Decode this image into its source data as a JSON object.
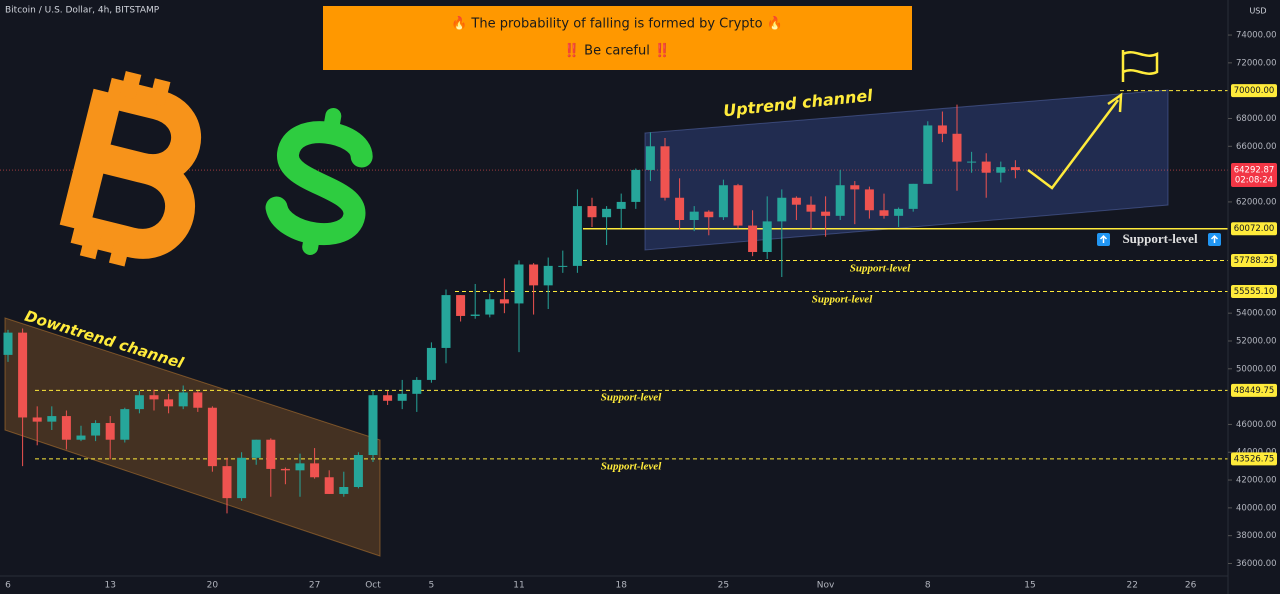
{
  "chart_data": {
    "type": "candlestick",
    "title": "Bitcoin / U.S. Dollar, 4h, BITSTAMP",
    "currency": "USD",
    "banner": [
      "🔥 The probability of falling is formed by Crypto 🔥",
      "‼️ Be careful ‼️"
    ],
    "annotations": {
      "downtrend": "Downtrend channel",
      "uptrend": "Uptrend channel",
      "support_labels": [
        "Support-level",
        "Support-level",
        "Support-level",
        "Support-level"
      ],
      "support_box": "Support-level"
    },
    "categories": [
      "6",
      null,
      null,
      null,
      null,
      null,
      null,
      "13",
      null,
      null,
      null,
      null,
      null,
      null,
      "20",
      null,
      null,
      null,
      null,
      null,
      null,
      "27",
      null,
      null,
      null,
      "Oct",
      null,
      null,
      null,
      "5",
      null,
      null,
      null,
      null,
      null,
      "11",
      null,
      null,
      null,
      null,
      null,
      null,
      "18",
      null,
      null,
      null,
      null,
      null,
      null,
      "25",
      null,
      null,
      null,
      null,
      null,
      null,
      "Nov",
      null,
      null,
      null,
      null,
      null,
      null,
      "8",
      null,
      null,
      null,
      null,
      null,
      null,
      "15",
      null,
      null,
      null,
      null,
      null,
      null,
      "22",
      null,
      null,
      null,
      "26",
      null,
      null
    ],
    "open": [
      51000,
      52600,
      46500,
      46200,
      46600,
      44900,
      45200,
      46100,
      44900,
      47100,
      48100,
      47800,
      47300,
      48300,
      47200,
      43000,
      40700,
      43600,
      44900,
      42800,
      42700,
      43200,
      42200,
      41000,
      41500,
      43800,
      48100,
      47700,
      48200,
      49200,
      51500,
      55300,
      53800,
      53900,
      55000,
      54700,
      57500,
      56000,
      57400,
      57400,
      61700,
      60900,
      61500,
      62000,
      64300,
      66000,
      62300,
      60700,
      61300,
      60900,
      63200,
      60300,
      58400,
      60600,
      62300,
      61800,
      61300,
      61000,
      63200,
      62900,
      61400,
      61000,
      61500,
      63300,
      67500,
      66900,
      64900,
      64900,
      64100,
      64500,
      null,
      null,
      null,
      null,
      null,
      null,
      null,
      null,
      null,
      null,
      null,
      null,
      null,
      null
    ],
    "high": [
      52800,
      52900,
      47300,
      47300,
      47000,
      45900,
      46300,
      46600,
      47200,
      48400,
      48500,
      48200,
      48800,
      48400,
      47300,
      43600,
      44000,
      44900,
      45000,
      42900,
      43900,
      44300,
      42700,
      42600,
      44000,
      48400,
      48400,
      49200,
      49400,
      51900,
      55700,
      55300,
      56100,
      55400,
      56500,
      57800,
      57600,
      58000,
      58500,
      62900,
      62300,
      61700,
      62600,
      64400,
      67000,
      66600,
      63700,
      61700,
      61400,
      63600,
      63300,
      61400,
      62400,
      62900,
      62400,
      62400,
      62400,
      64300,
      63500,
      63100,
      62600,
      61600,
      63300,
      67800,
      68500,
      69000,
      65600,
      65500,
      64900,
      65000,
      null,
      null,
      null,
      null,
      null,
      null,
      null,
      null,
      null,
      null,
      null,
      null,
      null,
      null
    ],
    "low": [
      50500,
      43000,
      44500,
      45600,
      44200,
      44800,
      44800,
      43500,
      44700,
      46800,
      47000,
      46800,
      47100,
      46900,
      42600,
      39600,
      40500,
      43100,
      40800,
      41700,
      40800,
      42100,
      41000,
      40800,
      41400,
      43300,
      47400,
      47100,
      46900,
      49000,
      50400,
      53400,
      53600,
      53700,
      54000,
      51200,
      53900,
      54300,
      56900,
      56900,
      60200,
      58900,
      60100,
      61500,
      63500,
      62100,
      60000,
      59900,
      59600,
      60700,
      60100,
      58100,
      57900,
      56600,
      60700,
      60000,
      59500,
      60700,
      60400,
      60800,
      60800,
      60200,
      61300,
      63300,
      66300,
      62800,
      64100,
      62300,
      63400,
      63700,
      null,
      null,
      null,
      null,
      null,
      null,
      null,
      null,
      null,
      null,
      null,
      null,
      null,
      null
    ],
    "close": [
      52600,
      46500,
      46200,
      46600,
      44900,
      45200,
      46100,
      44900,
      47100,
      48100,
      47800,
      47300,
      48300,
      47200,
      43000,
      40700,
      43600,
      44900,
      42800,
      42700,
      43200,
      42200,
      41000,
      41500,
      43800,
      48100,
      47700,
      48200,
      49200,
      51500,
      55300,
      53800,
      53900,
      55000,
      54700,
      57500,
      56000,
      57400,
      57400,
      61700,
      60900,
      61500,
      62000,
      64300,
      66000,
      62300,
      60700,
      61300,
      60900,
      63200,
      60300,
      58400,
      60600,
      62300,
      61800,
      61300,
      61000,
      63200,
      62900,
      61400,
      61000,
      61500,
      63300,
      67500,
      66900,
      64900,
      64900,
      64100,
      64500,
      64292.87,
      null,
      null,
      null,
      null,
      null,
      null,
      null,
      null,
      null,
      null,
      null,
      null,
      null,
      null
    ],
    "up_color": "#26a69a",
    "down_color": "#ef5350",
    "ylim": [
      35100,
      76520
    ],
    "yticks": [
      {
        "value": 74000,
        "label": "74000.00"
      },
      {
        "value": 72000,
        "label": "72000.00"
      },
      {
        "value": 68000,
        "label": "68000.00"
      },
      {
        "value": 66000,
        "label": "66000.00"
      },
      {
        "value": 62000,
        "label": "62000.00"
      },
      {
        "value": 54000,
        "label": "54000.00"
      },
      {
        "value": 52000,
        "label": "52000.00"
      },
      {
        "value": 50000,
        "label": "50000.00"
      },
      {
        "value": 46000,
        "label": "46000.00"
      },
      {
        "value": 44000,
        "label": "44000.00"
      },
      {
        "value": 42000,
        "label": "42000.00"
      },
      {
        "value": 40000,
        "label": "40000.00"
      },
      {
        "value": 38000,
        "label": "38000.00"
      },
      {
        "value": 36000,
        "label": "36000.00"
      }
    ],
    "levels": [
      {
        "value": 70000,
        "label": "70000.00",
        "style": "dashed"
      },
      {
        "value": 60072,
        "label": "60072.00",
        "style": "solid"
      },
      {
        "value": 57788.25,
        "label": "57788.25",
        "style": "dashed"
      },
      {
        "value": 55555.1,
        "label": "55555.10",
        "style": "dashed"
      },
      {
        "value": 48449.75,
        "label": "48449.75",
        "style": "dashed"
      },
      {
        "value": 43526.75,
        "label": "43526.75",
        "style": "dashed"
      }
    ],
    "current_price": {
      "value": 64292.87,
      "label": "64292.87",
      "countdown": "02:08:24"
    }
  }
}
